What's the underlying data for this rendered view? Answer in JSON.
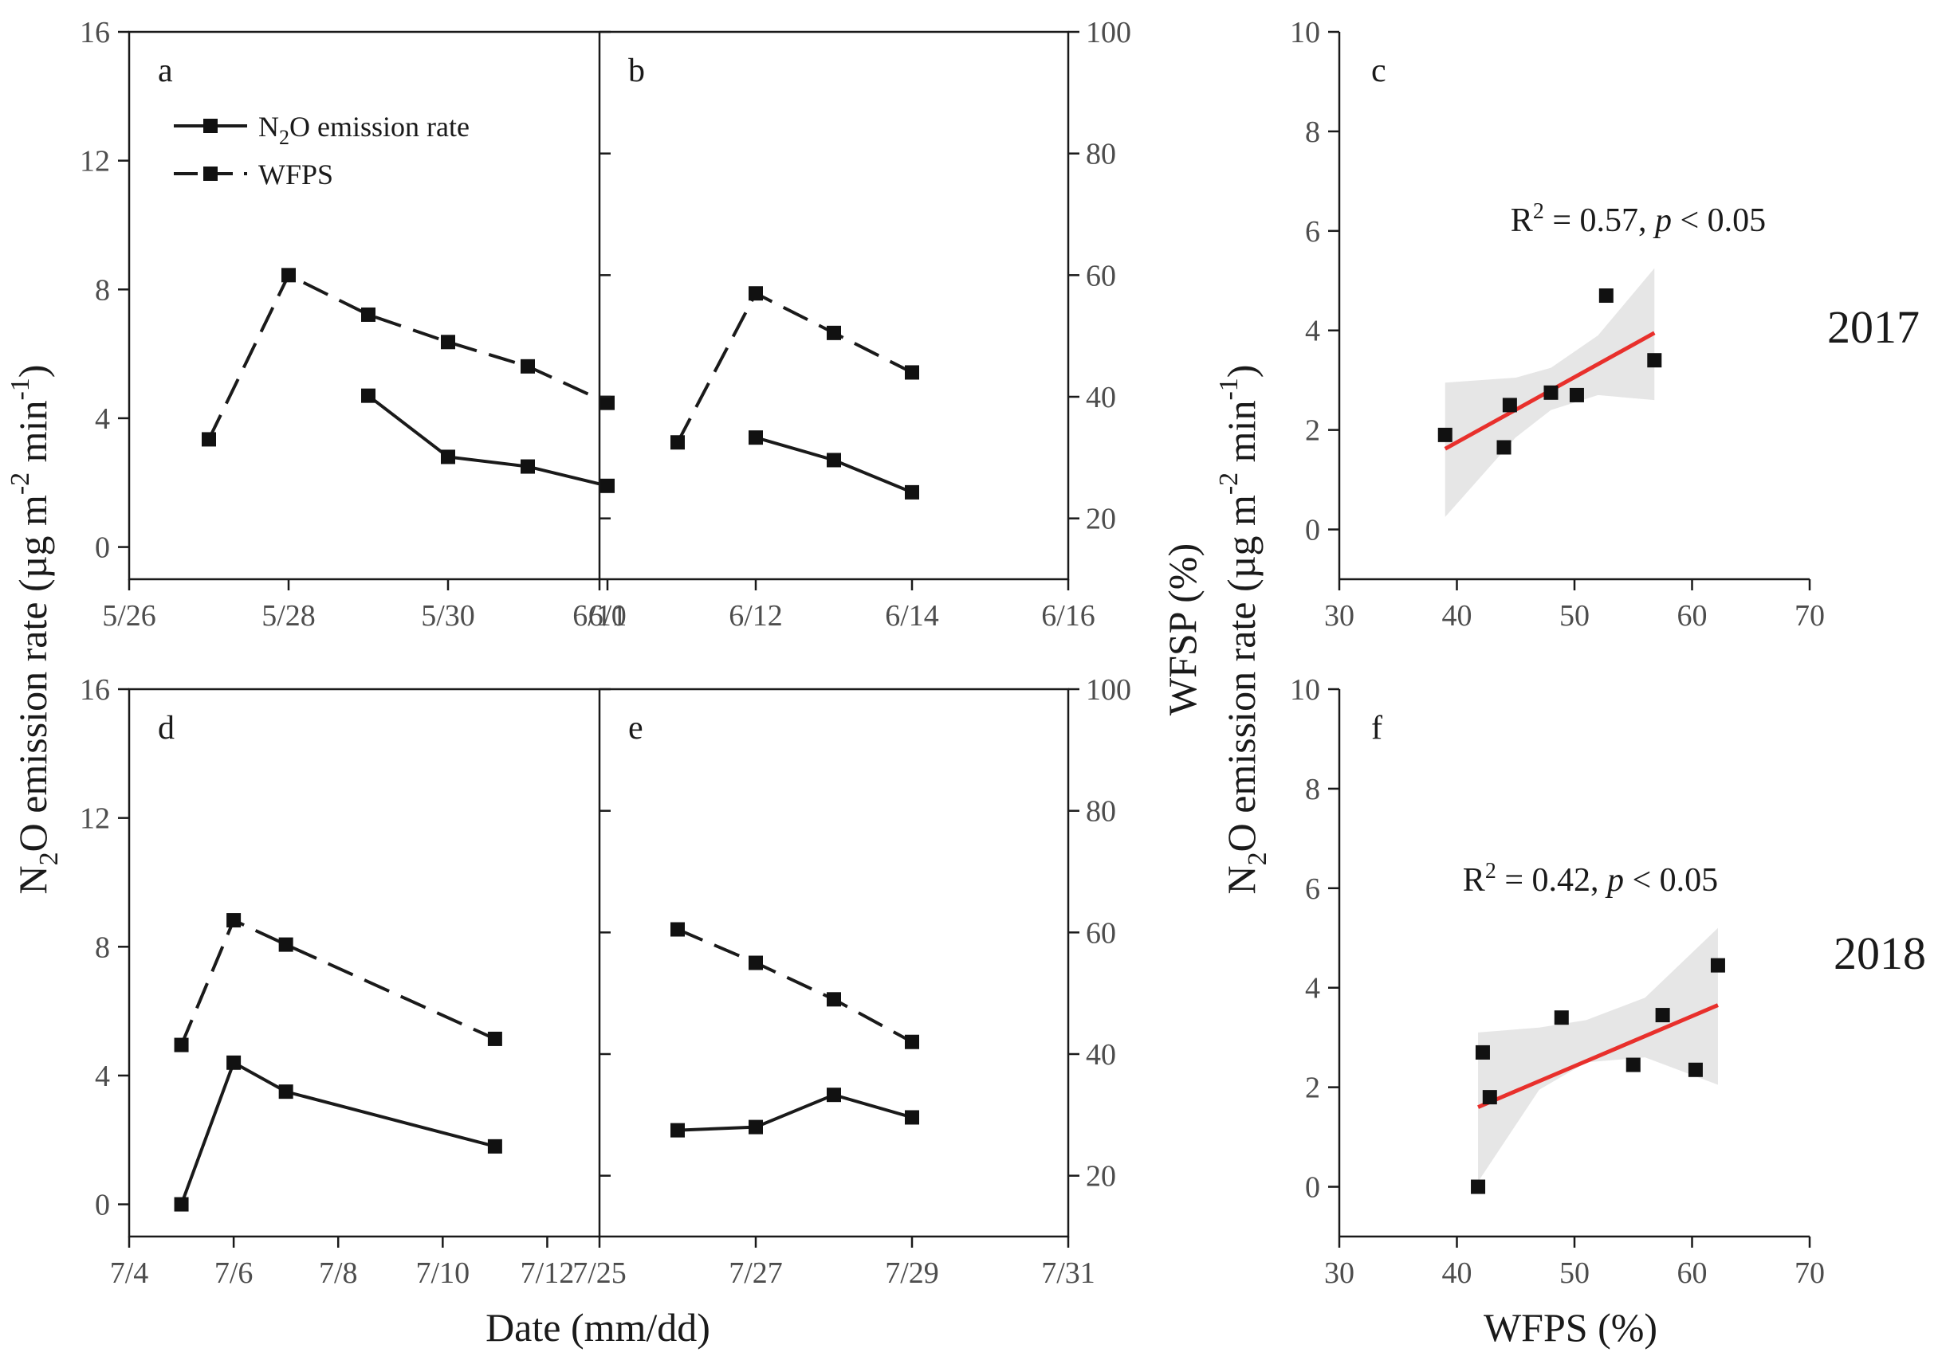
{
  "chart_data": [
    {
      "id": "a",
      "type": "line",
      "panel_label": "a",
      "x_ticks": [
        "5/26",
        "5/28",
        "5/30",
        "6/1"
      ],
      "xlim": [
        0,
        5.9
      ],
      "ylim_left": [
        -1,
        16
      ],
      "ylim_right": [
        10,
        100
      ],
      "series": [
        {
          "name": "N2O emission rate",
          "axis": "left",
          "style": "solid",
          "x": [
            3,
            4,
            5,
            6
          ],
          "y": [
            4.7,
            2.8,
            2.5,
            1.9
          ]
        },
        {
          "name": "WFPS",
          "axis": "right",
          "style": "dashed",
          "x": [
            1,
            2,
            3,
            4,
            5,
            6
          ],
          "y": [
            33,
            60,
            53.5,
            49,
            45,
            39
          ]
        }
      ]
    },
    {
      "id": "b",
      "type": "line",
      "panel_label": "b",
      "x_ticks": [
        "6/10",
        "6/12",
        "6/14",
        "6/16"
      ],
      "xlim": [
        0,
        6
      ],
      "ylim_left": [
        -1,
        16
      ],
      "ylim_right": [
        10,
        100
      ],
      "series": [
        {
          "name": "N2O emission rate",
          "axis": "left",
          "style": "solid",
          "x": [
            2,
            3,
            4
          ],
          "y": [
            3.4,
            2.7,
            1.7
          ]
        },
        {
          "name": "WFPS",
          "axis": "right",
          "style": "dashed",
          "x": [
            1,
            2,
            3,
            4
          ],
          "y": [
            32.5,
            57,
            50.5,
            44
          ]
        }
      ]
    },
    {
      "id": "d",
      "type": "line",
      "panel_label": "d",
      "x_ticks": [
        "7/4",
        "7/6",
        "7/8",
        "7/10",
        "7/12"
      ],
      "xlim": [
        0,
        9
      ],
      "ylim_left": [
        -1,
        16
      ],
      "ylim_right": [
        10,
        100
      ],
      "series": [
        {
          "name": "N2O emission rate",
          "axis": "left",
          "style": "solid",
          "x": [
            1,
            2,
            3,
            7
          ],
          "y": [
            0,
            4.4,
            3.5,
            1.8
          ]
        },
        {
          "name": "WFPS",
          "axis": "right",
          "style": "dashed",
          "x": [
            1,
            2,
            3,
            7
          ],
          "y": [
            41.5,
            62,
            58,
            42.5
          ]
        }
      ]
    },
    {
      "id": "e",
      "type": "line",
      "panel_label": "e",
      "x_ticks": [
        "7/25",
        "7/27",
        "7/29",
        "7/31"
      ],
      "xlim": [
        0,
        6
      ],
      "ylim_left": [
        -1,
        16
      ],
      "ylim_right": [
        10,
        100
      ],
      "series": [
        {
          "name": "N2O emission rate",
          "axis": "left",
          "style": "solid",
          "x": [
            1,
            2,
            3,
            4
          ],
          "y": [
            2.3,
            2.4,
            3.4,
            2.7
          ]
        },
        {
          "name": "WFPS",
          "axis": "right",
          "style": "dashed",
          "x": [
            1,
            2,
            3,
            4
          ],
          "y": [
            60.5,
            55,
            49,
            42
          ]
        }
      ]
    },
    {
      "id": "c",
      "type": "scatter",
      "panel_label": "c",
      "xlim": [
        30,
        70
      ],
      "ylim": [
        -1,
        10
      ],
      "x": [
        39,
        44,
        44.5,
        48,
        50.2,
        52.7,
        56.8
      ],
      "y": [
        1.9,
        1.65,
        2.5,
        2.75,
        2.7,
        4.7,
        3.4
      ],
      "fit": {
        "x": [
          39,
          56.8
        ],
        "y": [
          1.62,
          3.95
        ],
        "ci_x": [
          39,
          45,
          48,
          52,
          56.8
        ],
        "ci_upper": [
          2.95,
          3.05,
          3.25,
          3.9,
          5.25
        ],
        "ci_lower": [
          0.25,
          1.85,
          2.4,
          2.7,
          2.6
        ]
      },
      "annotation": {
        "prefix": "R",
        "sup": "2",
        "mid": " = 0.57, ",
        "p": "p",
        "suffix": " < 0.05"
      }
    },
    {
      "id": "f",
      "type": "scatter",
      "panel_label": "f",
      "xlim": [
        30,
        70
      ],
      "ylim": [
        -1,
        10
      ],
      "x": [
        41.8,
        42.2,
        42.8,
        48.9,
        55,
        57.5,
        60.3,
        62.2
      ],
      "y": [
        0,
        2.7,
        1.8,
        3.4,
        2.45,
        3.45,
        2.35,
        4.45
      ],
      "fit": {
        "x": [
          41.8,
          62.2
        ],
        "y": [
          1.6,
          3.65
        ],
        "ci_x": [
          41.8,
          47,
          51,
          56,
          62.2
        ],
        "ci_upper": [
          3.1,
          3.2,
          3.35,
          3.8,
          5.2
        ],
        "ci_lower": [
          0.1,
          1.95,
          2.5,
          2.6,
          2.05
        ]
      },
      "annotation": {
        "prefix": "R",
        "sup": "2",
        "mid": " = 0.42, ",
        "p": "p",
        "suffix": " < 0.05"
      }
    }
  ],
  "left_ticks": [
    "0",
    "4",
    "8",
    "12",
    "16"
  ],
  "right_ticks": [
    "20",
    "40",
    "60",
    "80",
    "100"
  ],
  "scatter_y_ticks": [
    "0",
    "2",
    "4",
    "6",
    "8",
    "10"
  ],
  "scatter_x_ticks": [
    "30",
    "40",
    "50",
    "60",
    "70"
  ],
  "y_label_left": {
    "pre": "N",
    "sub": "2",
    "mid": "O emission rate (µg m",
    "sup1": "-2",
    "mid2": " min",
    "sup2": "-1",
    "post": ")"
  },
  "y_label_right": "WFSP (%)",
  "x_label_bottom": "Date (mm/dd)",
  "x_label_scatter": "WFPS (%)",
  "years": [
    "2017",
    "2018"
  ],
  "legend": [
    {
      "pre": "N",
      "sub": "2",
      "post": "O emission rate",
      "style": "solid"
    },
    {
      "pre": "WFPS",
      "sub": "",
      "post": "",
      "style": "dashed"
    }
  ],
  "colors": {
    "axis": "#1a1a1a",
    "fit": "#e8302c",
    "ci": "#e6e6e6",
    "marker": "#111111"
  }
}
